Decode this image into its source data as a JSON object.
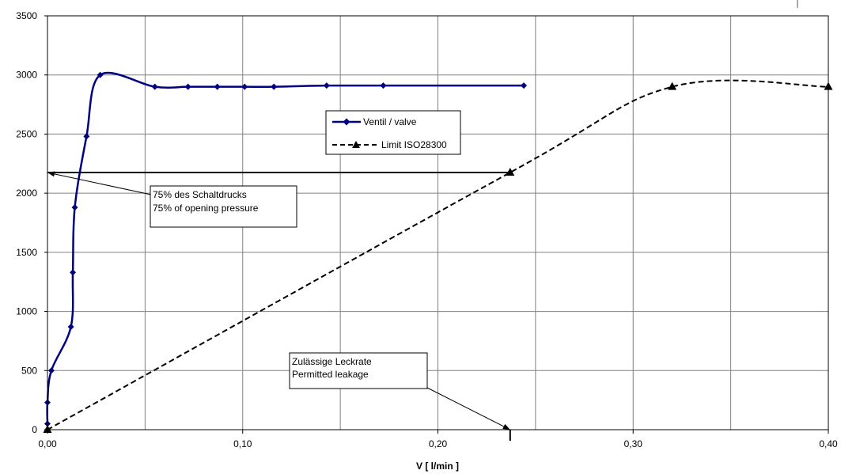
{
  "chart_data": {
    "type": "line",
    "title": "",
    "xlabel": "V [ l/min ]",
    "ylabel": "",
    "xlim": [
      0,
      0.4
    ],
    "ylim": [
      0,
      3500
    ],
    "x_ticks": [
      "0,00",
      "0,10",
      "0,20",
      "0,30",
      "0,40"
    ],
    "x_tick_values": [
      0,
      0.1,
      0.2,
      0.3,
      0.4
    ],
    "y_ticks": [
      "0",
      "500",
      "1000",
      "1500",
      "2000",
      "2500",
      "3000",
      "3500"
    ],
    "y_tick_values": [
      0,
      500,
      1000,
      1500,
      2000,
      2500,
      3000,
      3500
    ],
    "x_minor_step": 0.05,
    "grid": true,
    "legend_position": "top-center",
    "series": [
      {
        "name": "Ventil / valve",
        "marker": "diamond",
        "color": "#000080",
        "x": [
          0.0,
          0.0,
          0.002,
          0.012,
          0.013,
          0.014,
          0.02,
          0.027,
          0.055,
          0.072,
          0.087,
          0.101,
          0.116,
          0.143,
          0.172,
          0.244
        ],
        "y": [
          50,
          230,
          500,
          870,
          1330,
          1880,
          2480,
          3000,
          2900,
          2900,
          2900,
          2900,
          2900,
          2910,
          2910,
          2910
        ]
      },
      {
        "name": "Limit ISO28300",
        "marker": "triangle",
        "color": "#000000",
        "dash": "dashed",
        "x": [
          0.0,
          0.237,
          0.32,
          0.4
        ],
        "y": [
          0,
          2175,
          2900,
          2900
        ]
      }
    ],
    "reference_lines": [
      {
        "from": [
          0,
          2175
        ],
        "to": [
          0.237,
          2175
        ]
      },
      {
        "from": [
          0.237,
          0
        ],
        "to": [
          0.237,
          2175
        ]
      }
    ],
    "annotations": [
      {
        "id": "opening",
        "lines": [
          "75% des Schaltdrucks",
          "75% of opening pressure"
        ],
        "target": [
          0,
          2175
        ]
      },
      {
        "id": "leakage",
        "lines": [
          "Zulässige Leckrate",
          "Permitted leakage"
        ],
        "target": [
          0.237,
          0
        ]
      }
    ]
  }
}
